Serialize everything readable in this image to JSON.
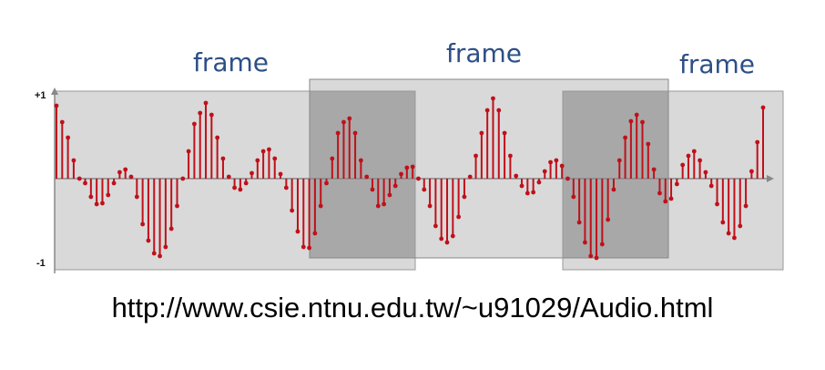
{
  "frames": [
    {
      "label": "frame"
    },
    {
      "label": "frame"
    },
    {
      "label": "frame"
    }
  ],
  "axis": {
    "top_label": "+1",
    "bottom_label": "-1"
  },
  "caption": "http://www.csie.ntnu.edu.tw/~u91029/Audio.html",
  "colors": {
    "stem": "#c0101a",
    "light_frame": "#d9d9d9",
    "dark_frame": "#a8a8a8",
    "label": "#2d4f86"
  },
  "signal": [
    0.8,
    0.62,
    0.45,
    0.2,
    0.0,
    -0.05,
    -0.2,
    -0.28,
    -0.27,
    -0.18,
    -0.05,
    0.07,
    0.1,
    0.02,
    -0.2,
    -0.5,
    -0.68,
    -0.82,
    -0.85,
    -0.75,
    -0.55,
    -0.3,
    0.0,
    0.3,
    0.6,
    0.72,
    0.83,
    0.7,
    0.45,
    0.22,
    0.02,
    -0.1,
    -0.12,
    -0.05,
    0.06,
    0.2,
    0.3,
    0.32,
    0.22,
    0.05,
    -0.1,
    -0.35,
    -0.58,
    -0.75,
    -0.76,
    -0.6,
    -0.3,
    -0.05,
    0.22,
    0.5,
    0.62,
    0.66,
    0.5,
    0.2,
    0.02,
    -0.12,
    -0.3,
    -0.28,
    -0.18,
    -0.08,
    0.05,
    0.12,
    0.13,
    0.0,
    -0.12,
    -0.3,
    -0.52,
    -0.66,
    -0.7,
    -0.63,
    -0.42,
    -0.2,
    0.02,
    0.25,
    0.5,
    0.75,
    0.88,
    0.75,
    0.5,
    0.25,
    0.03,
    -0.08,
    -0.16,
    -0.15,
    -0.04,
    0.08,
    0.18,
    0.2,
    0.14,
    0.0,
    -0.2,
    -0.48,
    -0.7,
    -0.85,
    -0.87,
    -0.72,
    -0.45,
    -0.12,
    0.2,
    0.45,
    0.63,
    0.7,
    0.62,
    0.38,
    0.1,
    -0.16,
    -0.25,
    -0.22,
    -0.06,
    0.15,
    0.25,
    0.3,
    0.2,
    0.07,
    -0.08,
    -0.28,
    -0.48,
    -0.6,
    -0.65,
    -0.52,
    -0.3,
    0.08,
    0.4,
    0.78
  ]
}
